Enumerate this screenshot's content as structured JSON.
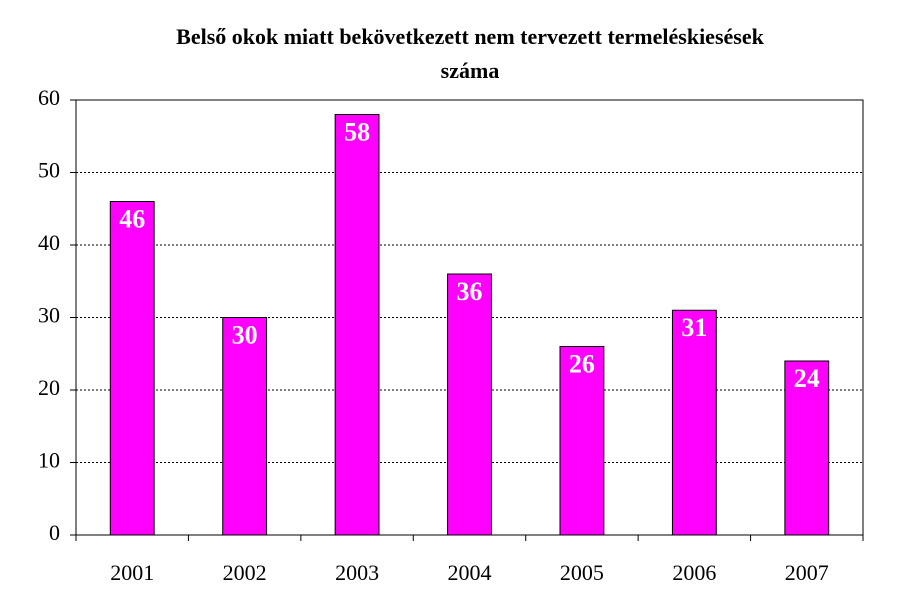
{
  "chart_data": {
    "type": "bar",
    "title": "Belső okok miatt bekövetkezett nem tervezett termeléskiesések száma",
    "categories": [
      "2001",
      "2002",
      "2003",
      "2004",
      "2005",
      "2006",
      "2007"
    ],
    "values": [
      46,
      30,
      58,
      36,
      26,
      31,
      24
    ],
    "color": "#ff00ff",
    "ylim": [
      0,
      60
    ],
    "yticks": [
      0,
      10,
      20,
      30,
      40,
      50,
      60
    ],
    "grid": true
  }
}
